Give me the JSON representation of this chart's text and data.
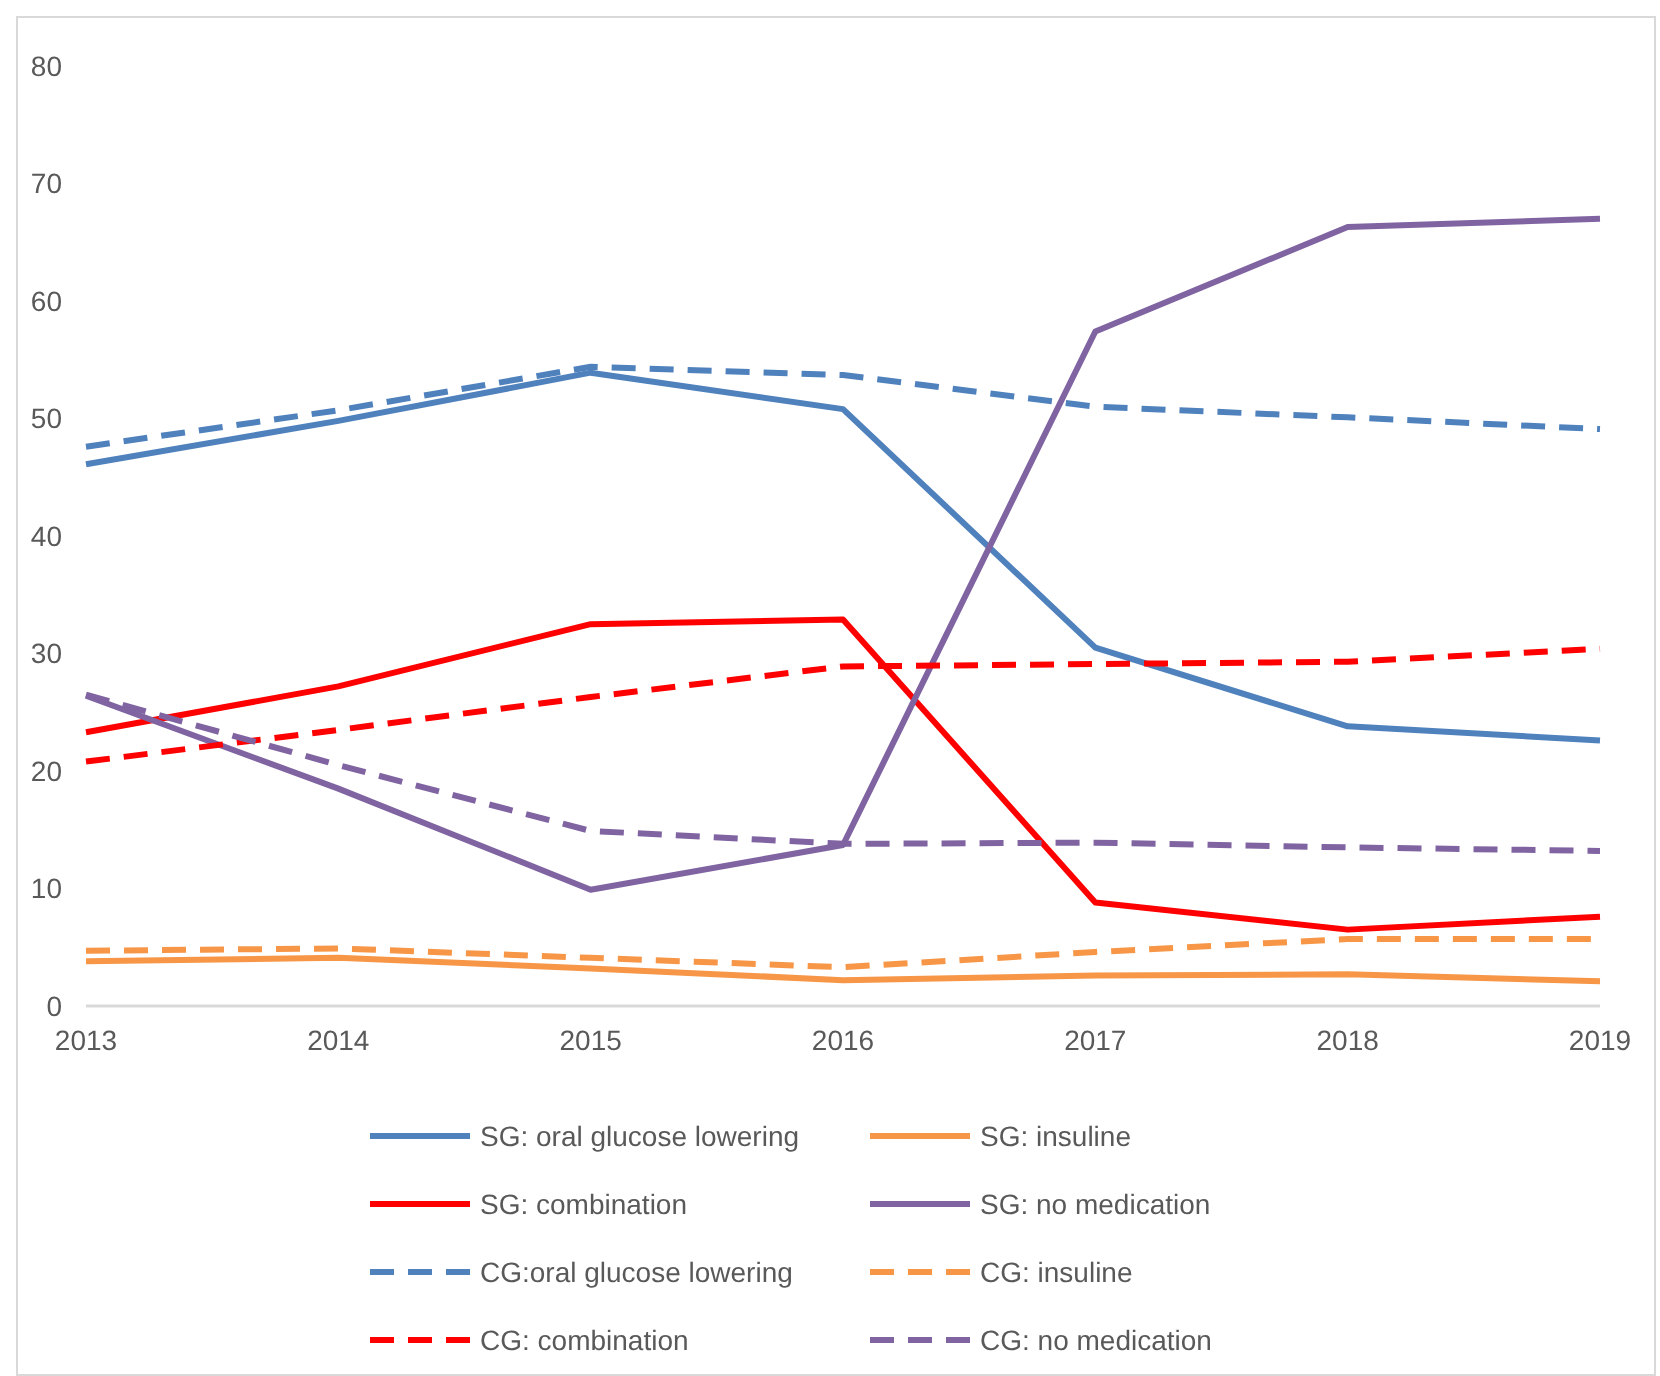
{
  "chart_data": {
    "type": "line",
    "categories": [
      "2013",
      "2014",
      "2015",
      "2016",
      "2017",
      "2018",
      "2019"
    ],
    "ylim": [
      0,
      80
    ],
    "yticks": [
      0,
      10,
      20,
      30,
      40,
      50,
      60,
      70,
      80
    ],
    "grid": false,
    "legend": "bottom",
    "series": [
      {
        "name": "SG: oral glucose lowering",
        "color": "#4f81bd",
        "line_style": "solid",
        "values": [
          46.1,
          49.8,
          53.9,
          50.8,
          30.5,
          23.8,
          22.6
        ]
      },
      {
        "name": "SG: insuline",
        "color": "#f79646",
        "line_style": "solid",
        "values": [
          3.8,
          4.1,
          3.2,
          2.2,
          2.6,
          2.7,
          2.1
        ]
      },
      {
        "name": "SG: combination",
        "color": "#ff0000",
        "line_style": "solid",
        "values": [
          23.3,
          27.2,
          32.5,
          32.9,
          8.8,
          6.5,
          7.6
        ]
      },
      {
        "name": "SG: no medication",
        "color": "#8064a2",
        "line_style": "solid",
        "values": [
          26.4,
          18.5,
          9.9,
          13.7,
          57.4,
          66.3,
          67.0
        ]
      },
      {
        "name": "CG:oral glucose lowering",
        "color": "#4f81bd",
        "line_style": "dashed",
        "values": [
          47.6,
          50.7,
          54.4,
          53.7,
          51.0,
          50.1,
          49.1
        ]
      },
      {
        "name": "CG: insuline",
        "color": "#f79646",
        "line_style": "dashed",
        "values": [
          4.7,
          4.9,
          4.1,
          3.3,
          4.6,
          5.7,
          5.7
        ]
      },
      {
        "name": "CG: combination",
        "color": "#ff0000",
        "line_style": "dashed",
        "values": [
          20.8,
          23.5,
          26.3,
          28.9,
          29.1,
          29.3,
          30.4
        ]
      },
      {
        "name": "CG: no medication",
        "color": "#8064a2",
        "line_style": "dashed",
        "values": [
          26.5,
          20.5,
          14.9,
          13.8,
          13.9,
          13.5,
          13.2
        ]
      }
    ]
  }
}
